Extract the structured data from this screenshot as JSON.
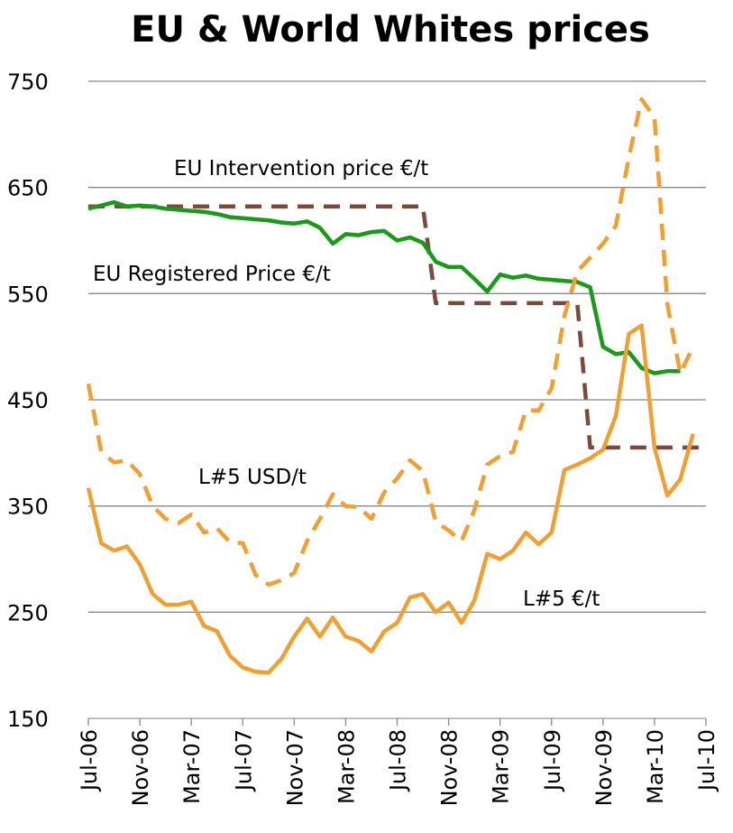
{
  "chart_data": {
    "type": "line",
    "title": "EU & World Whites prices",
    "categories": [
      "Jul-06",
      null,
      null,
      null,
      "Nov-06",
      null,
      null,
      null,
      "Mar-07",
      null,
      null,
      null,
      "Jul-07",
      null,
      null,
      null,
      "Nov-07",
      null,
      null,
      null,
      "Mar-08",
      null,
      null,
      null,
      "Jul-08",
      null,
      null,
      null,
      "Nov-08",
      null,
      null,
      null,
      "Mar-09",
      null,
      null,
      null,
      "Jul-09",
      null,
      null,
      null,
      "Nov-09",
      null,
      null,
      null,
      "Mar-10",
      null,
      null,
      null,
      "Jul-10"
    ],
    "ylim": [
      150,
      750
    ],
    "yticks": [
      150,
      250,
      350,
      450,
      550,
      650,
      750
    ],
    "grid": true,
    "series": [
      {
        "name": "EU Intervention price €/t",
        "color": "#7b4a3a",
        "dash": true,
        "values": [
          632,
          632,
          632,
          632,
          632,
          632,
          632,
          632,
          632,
          632,
          632,
          632,
          632,
          632,
          632,
          632,
          632,
          632,
          632,
          632,
          632,
          632,
          632,
          632,
          632,
          632,
          632,
          541,
          541,
          541,
          541,
          541,
          541,
          541,
          541,
          541,
          541,
          541,
          541,
          405,
          405,
          405,
          405,
          405,
          405,
          405,
          405,
          405,
          405
        ]
      },
      {
        "name": "EU Registered Price €/t",
        "color": "#1a9a1a",
        "dash": false,
        "values": [
          630,
          633,
          636,
          632,
          633,
          632,
          630,
          629,
          628,
          627,
          625,
          622,
          621,
          620,
          619,
          617,
          616,
          618,
          612,
          597,
          606,
          605,
          608,
          609,
          600,
          603,
          598,
          580,
          575,
          575,
          564,
          552,
          568,
          565,
          567,
          564,
          563,
          562,
          561,
          556,
          500,
          493,
          495,
          480,
          475,
          477,
          477,
          null,
          null
        ]
      },
      {
        "name": "L#5 USD/t",
        "color": "#f0a030",
        "dash": true,
        "values": [
          465,
          401,
          391,
          393,
          380,
          350,
          338,
          334,
          342,
          325,
          329,
          316,
          315,
          285,
          276,
          280,
          287,
          317,
          338,
          361,
          350,
          349,
          338,
          363,
          376,
          393,
          383,
          335,
          327,
          317,
          346,
          389,
          397,
          401,
          440,
          440,
          461,
          529,
          571,
          584,
          597,
          614,
          678,
          733,
          716,
          540,
          475,
          500,
          null
        ]
      },
      {
        "name": "L#5 €/t",
        "color": "#f0a030",
        "dash": false,
        "values": [
          367,
          315,
          308,
          312,
          295,
          267,
          257,
          257,
          260,
          237,
          232,
          209,
          198,
          194,
          193,
          206,
          227,
          244,
          227,
          245,
          227,
          223,
          213,
          232,
          240,
          264,
          267,
          250,
          259,
          240,
          261,
          305,
          300,
          308,
          325,
          314,
          325,
          384,
          389,
          395,
          403,
          435,
          512,
          520,
          405,
          360,
          375,
          418,
          null
        ]
      }
    ]
  }
}
